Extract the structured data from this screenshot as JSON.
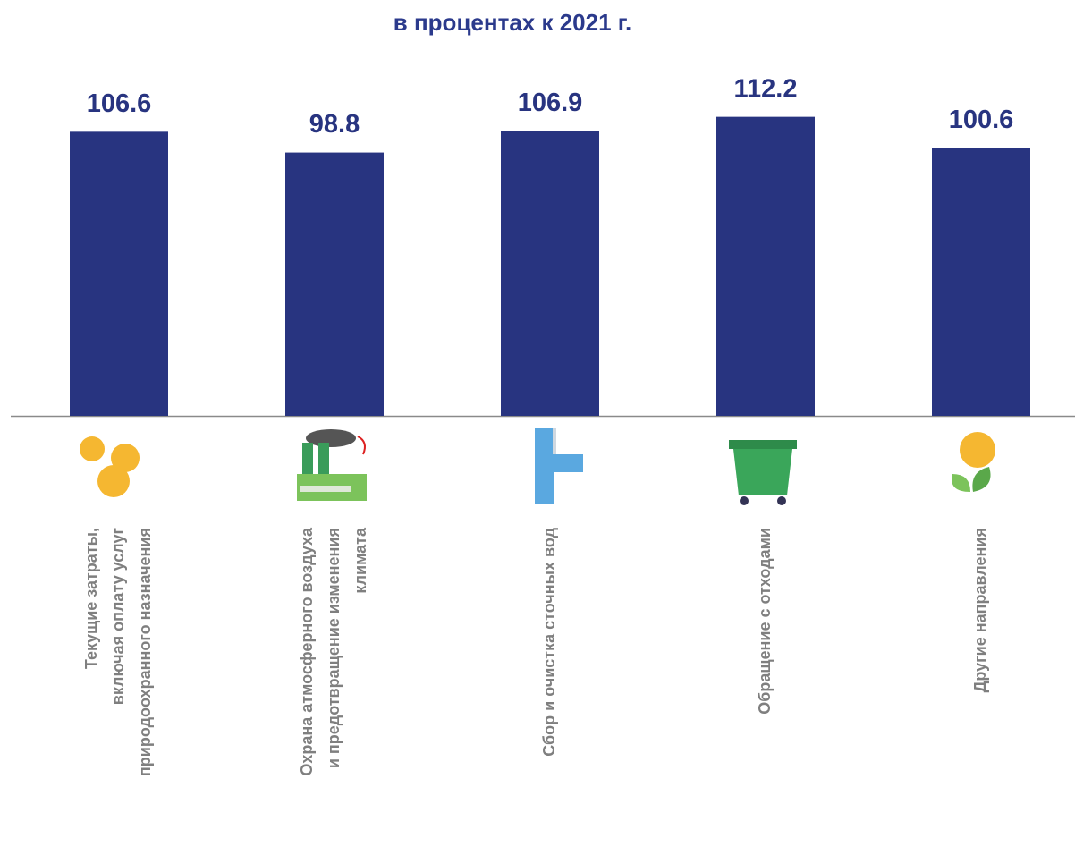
{
  "chart_data": {
    "type": "bar",
    "title": "в процентах к 2021 г.",
    "categories": [
      [
        "Текущие  затраты,",
        "включая оплату услуг",
        "природоохранного назначения"
      ],
      [
        "Охрана атмосферного воздуха",
        "и предотвращение изменения",
        "климата"
      ],
      [
        "Сбор и очистка сточных вод"
      ],
      [
        "Обращение с отходами"
      ],
      [
        "Другие направления"
      ]
    ],
    "values": [
      106.6,
      98.8,
      106.9,
      112.2,
      100.6
    ],
    "color": "#283480",
    "ylim": [
      0,
      150
    ]
  }
}
